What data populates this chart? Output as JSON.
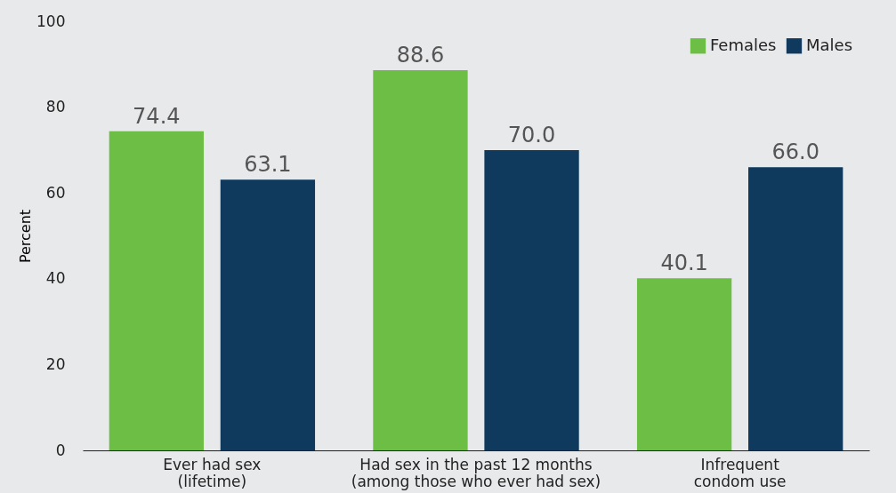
{
  "chart_data": {
    "type": "bar",
    "ylabel": "Percent",
    "categories": [
      "Ever had sex\n(lifetime)",
      "Had sex in the past 12 months\n(among those who ever had sex)",
      "Infrequent\ncondom use"
    ],
    "series": [
      {
        "name": "Females",
        "color": "#6dbe45",
        "values": [
          74.4,
          88.6,
          40.1
        ],
        "value_labels": [
          "74.4",
          "88.6",
          "40.1"
        ]
      },
      {
        "name": "Males",
        "color": "#0f3a5d",
        "values": [
          63.1,
          70.0,
          66.0
        ],
        "value_labels": [
          "63.1",
          "70.0",
          "66.0"
        ]
      }
    ],
    "ylim": [
      0,
      100
    ],
    "yticks": [
      0,
      20,
      40,
      60,
      80,
      100
    ],
    "legend": "top right",
    "grid": false
  }
}
